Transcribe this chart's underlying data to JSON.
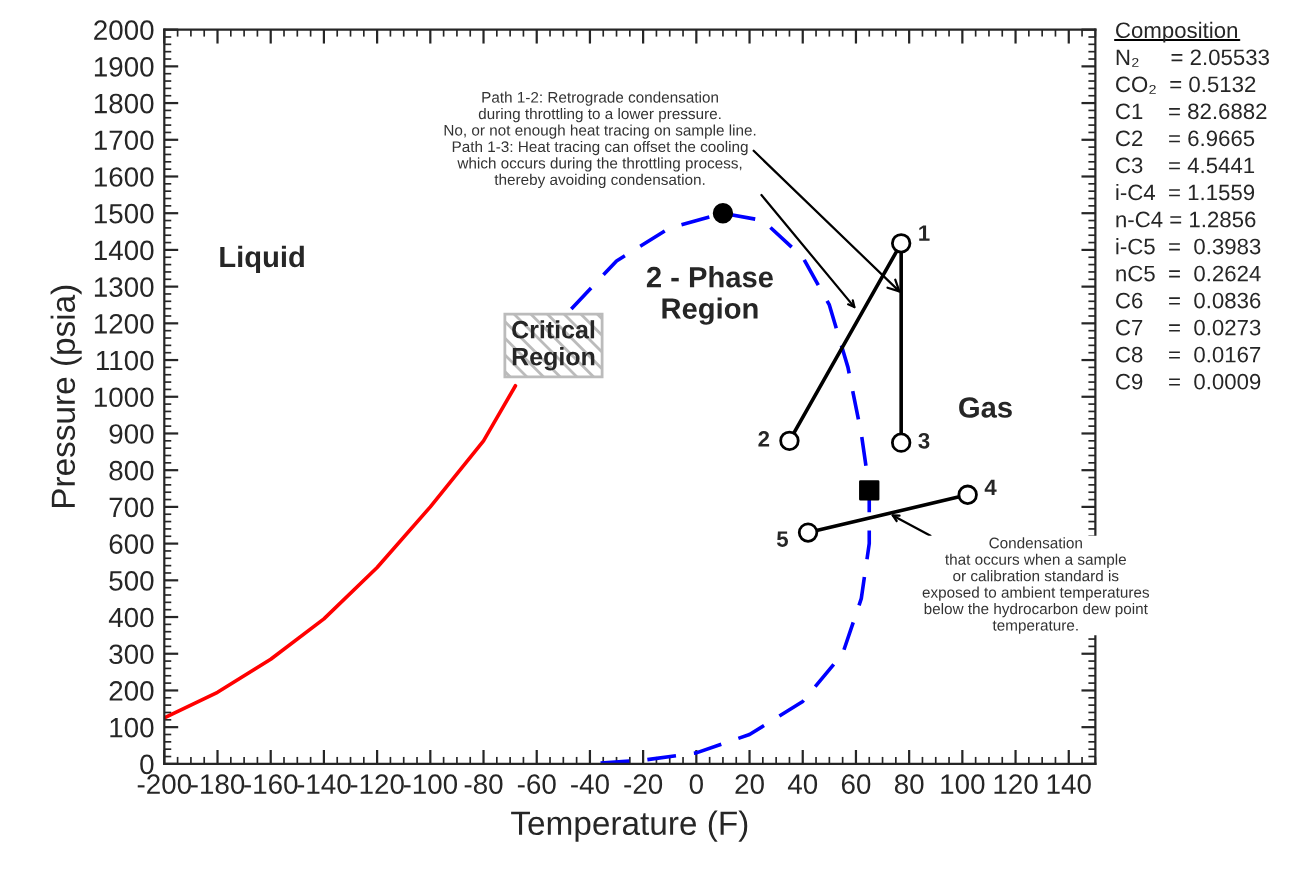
{
  "chart_data": {
    "type": "line",
    "xlabel": "Temperature (F)",
    "ylabel": "Pressure (psia)",
    "xlim": [
      -200,
      150
    ],
    "ylim": [
      0,
      2000
    ],
    "xticks": [
      -200,
      -180,
      -160,
      -140,
      -120,
      -100,
      -80,
      -60,
      -40,
      -20,
      0,
      20,
      40,
      60,
      80,
      100,
      120,
      140
    ],
    "yticks": [
      0,
      100,
      200,
      300,
      400,
      500,
      600,
      700,
      800,
      900,
      1000,
      1100,
      1200,
      1300,
      1400,
      1500,
      1600,
      1700,
      1800,
      1900,
      2000
    ],
    "grid": false,
    "legend": false,
    "series": [
      {
        "color": "#ff0000",
        "line_style": "solid",
        "x": [
          -200,
          -180,
          -160,
          -140,
          -120,
          -100,
          -80,
          -68
        ],
        "values": [
          125,
          195,
          285,
          395,
          535,
          700,
          880,
          1030
        ]
      },
      {
        "color": "#0000ff",
        "line_style": "dashed",
        "x": [
          -47,
          -30,
          -10,
          10,
          25,
          40,
          50,
          57,
          62,
          65,
          65,
          62,
          55,
          40,
          20,
          0,
          -20,
          -40
        ],
        "values": [
          1239,
          1370,
          1460,
          1500,
          1480,
          1380,
          1250,
          1080,
          900,
          750,
          600,
          450,
          300,
          170,
          80,
          30,
          10,
          0
        ]
      },
      {
        "color": "#000000",
        "line_style": "solid",
        "x": [
          77,
          35
        ],
        "values": [
          1418,
          880
        ]
      },
      {
        "color": "#000000",
        "line_style": "solid",
        "x": [
          77,
          77
        ],
        "values": [
          1418,
          875
        ]
      },
      {
        "color": "#000000",
        "line_style": "solid",
        "x": [
          42,
          102
        ],
        "values": [
          630,
          733
        ]
      },
      {
        "type": "scatter",
        "color": "#000000",
        "marker": "circle",
        "x": [
          10
        ],
        "values": [
          1500
        ]
      },
      {
        "type": "scatter",
        "color": "#000000",
        "marker": "square",
        "x": [
          65
        ],
        "values": [
          745
        ]
      },
      {
        "type": "scatter",
        "color": "#ffffff",
        "marker": "circle",
        "x": [
          77,
          35,
          77,
          102,
          42
        ],
        "values": [
          1418,
          880,
          875,
          733,
          630
        ]
      }
    ],
    "annotations": [
      "Liquid",
      "2 - Phase\nRegion",
      "Gas",
      "Critical\nRegion",
      {
        "text": "Path 1-2: Retrograde condensation\nduring throttling to a lower pressure.\nNo, or not enough heat tracing on sample line.\nPath 1-3: Heat tracing can offset the cooling\nwhich occurs during the throttling process,\nthereby avoiding condensation.",
        "x": 60,
        "y": 1239
      },
      {
        "text": "Condensation\nthat occurs when a sample\nor calibration standard is\nexposed to ambient temperatures\nbelow the hydrocarbon dew point\ntemperature.",
        "x": 73,
        "y": 680
      },
      {
        "text": "1",
        "x": 77,
        "y": 1418
      },
      {
        "text": "2",
        "x": 35,
        "y": 880
      },
      {
        "text": "3",
        "x": 77,
        "y": 875
      },
      {
        "text": "4",
        "x": 102,
        "y": 733
      },
      {
        "text": "5",
        "x": 42,
        "y": 630
      },
      "Composition",
      "N₂     = 2.05533",
      "CO₂  = 0.5132",
      "C1    = 82.6882",
      "C2    = 6.9665",
      "C3    = 4.5441",
      "i-C4  = 1.1559",
      "n-C4 = 1.2856",
      "i-C5  =  0.3983",
      "nC5  =  0.2624",
      "C6    =  0.0836",
      "C7    =  0.0273",
      "C8    =  0.0167",
      "C9    =  0.0009"
    ]
  }
}
